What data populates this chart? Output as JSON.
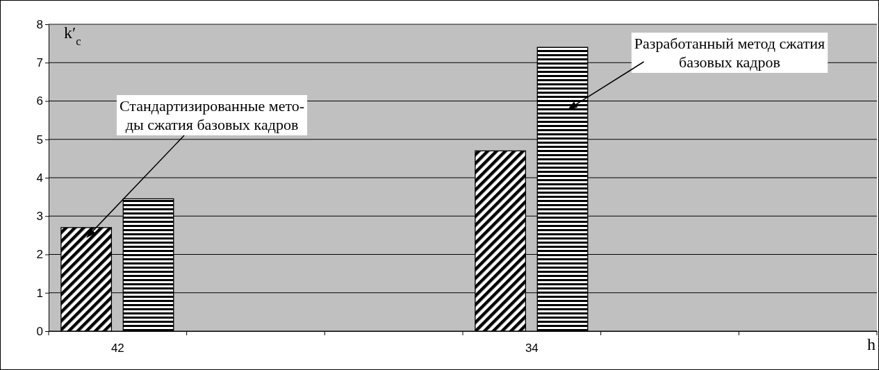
{
  "chart_data": {
    "type": "bar",
    "ylabel": "k′$_{c}$",
    "xlabel": "h",
    "categories": [
      "42",
      null,
      null,
      "34",
      null,
      null
    ],
    "series": [
      {
        "color": "#000000",
        "values": [
          2.7,
          null,
          null,
          4.7,
          null,
          null
        ]
      },
      {
        "color": "#000000",
        "values": [
          3.45,
          null,
          null,
          7.4,
          null,
          null
        ]
      }
    ],
    "ylim": [
      0,
      8
    ],
    "yticks": [
      0,
      1,
      2,
      3,
      4,
      5,
      6,
      7,
      8
    ],
    "grid": "y",
    "annotations": [
      "Стандартизированные мето-\nды сжатия базовых кадров",
      "Разработанный метод сжатия\nбазовых кадров"
    ]
  }
}
